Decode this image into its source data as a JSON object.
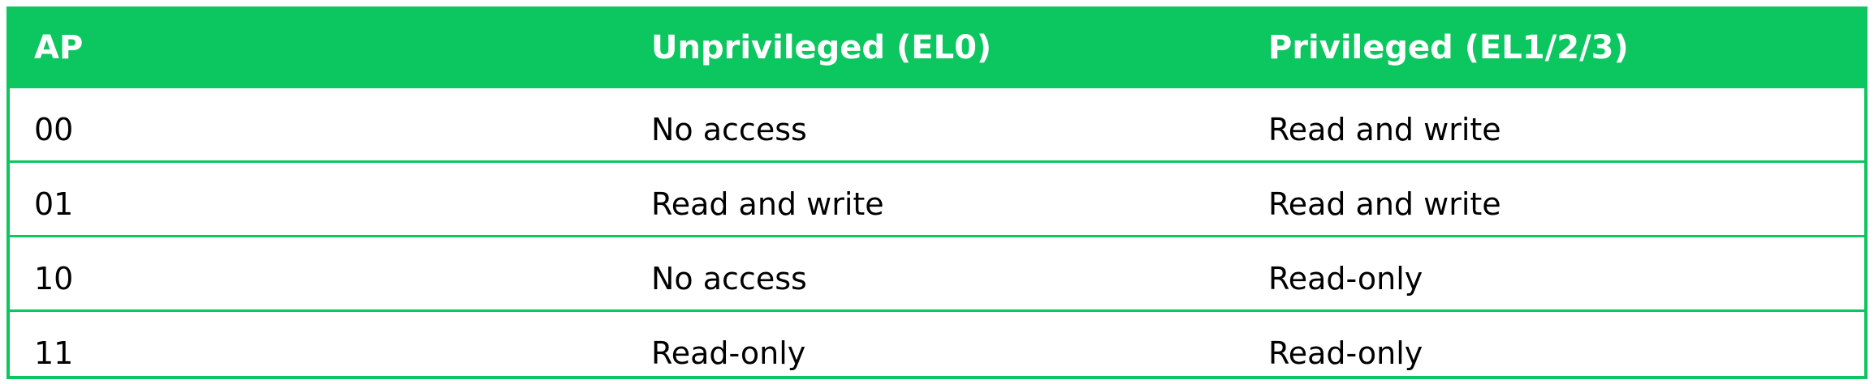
{
  "table": {
    "header": [
      "AP",
      "Unprivileged (EL0)",
      "Privileged (EL1/2/3)"
    ],
    "rows": [
      [
        "00",
        "No access",
        "Read and write"
      ],
      [
        "01",
        "Read and write",
        "Read and write"
      ],
      [
        "10",
        "No access",
        "Read-only"
      ],
      [
        "11",
        "Read-only",
        "Read-only"
      ]
    ]
  },
  "colors": {
    "accent": "#0cc65f",
    "header_text": "#ffffff",
    "body_text": "#000000"
  }
}
